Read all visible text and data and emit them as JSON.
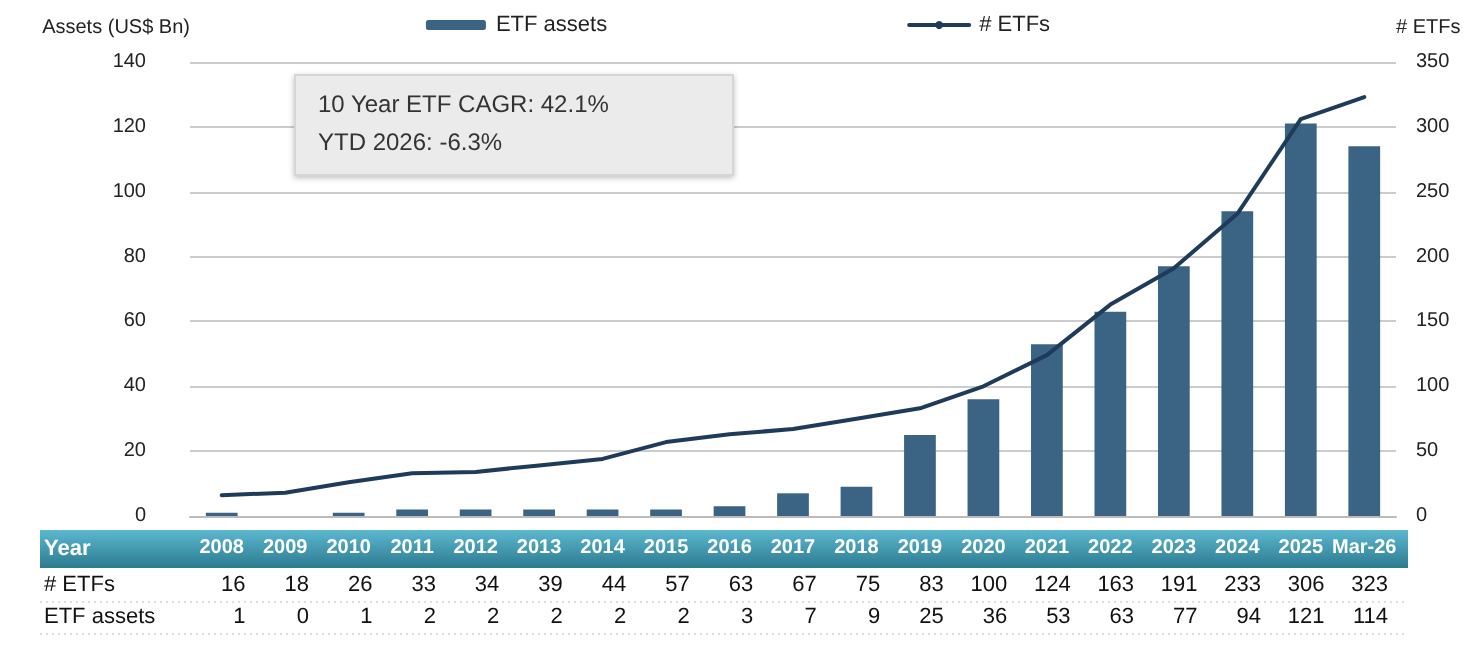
{
  "chart_data": {
    "type": "bar",
    "ylabel": "Assets (US$ Bn)",
    "y2label": "# ETFs",
    "xlabel": "Year",
    "categories": [
      "2008",
      "2009",
      "2010",
      "2011",
      "2012",
      "2013",
      "2014",
      "2015",
      "2016",
      "2017",
      "2018",
      "2019",
      "2020",
      "2021",
      "2022",
      "2023",
      "2024",
      "2025",
      "Mar-26"
    ],
    "series": [
      {
        "name": "ETF assets",
        "color": "#3b6384",
        "values": [
          1,
          0,
          1,
          2,
          2,
          2,
          2,
          2,
          3,
          7,
          9,
          25,
          36,
          53,
          63,
          77,
          94,
          121,
          114
        ]
      },
      {
        "name": "# ETFs",
        "type": "line",
        "axis": "y2",
        "color": "#1f3b5c",
        "values": [
          16,
          18,
          26,
          33,
          34,
          39,
          44,
          57,
          63,
          67,
          75,
          83,
          100,
          124,
          163,
          191,
          233,
          306,
          323
        ]
      }
    ],
    "ylim": [
      0,
      140
    ],
    "yticks": [
      0,
      20,
      40,
      60,
      80,
      100,
      120,
      140
    ],
    "y2lim": [
      0,
      350
    ],
    "y2ticks": [
      0,
      50,
      100,
      150,
      200,
      250,
      300,
      350
    ],
    "grid": "y",
    "legend": "top",
    "marker": "none",
    "line_style": "solid",
    "data_labels": true,
    "annotations": [
      "10 Year ETF CAGR: 42.1%",
      "YTD 2026: -6.3%"
    ]
  }
}
